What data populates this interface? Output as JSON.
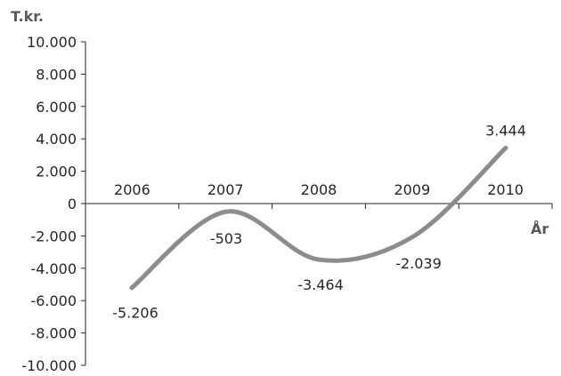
{
  "chart_data": {
    "type": "line",
    "ylabel": "T.kr.",
    "xlabel": "År",
    "ylim": [
      -10000,
      10000
    ],
    "yticks": [
      "10.000",
      "8.000",
      "6.000",
      "4.000",
      "2.000",
      "0",
      "-2.000",
      "-4.000",
      "-6.000",
      "-8.000",
      "-10.000"
    ],
    "categories": [
      "2006",
      "2007",
      "2008",
      "2009",
      "2010"
    ],
    "values": [
      -5206,
      -503,
      -3464,
      -2039,
      3444
    ],
    "value_labels": [
      "-5.206",
      "-503",
      "-3.464",
      "-2.039",
      "3.444"
    ],
    "line_color": "#8c8c8c",
    "axis_color": "#262626",
    "smooth": true,
    "grid": false
  }
}
